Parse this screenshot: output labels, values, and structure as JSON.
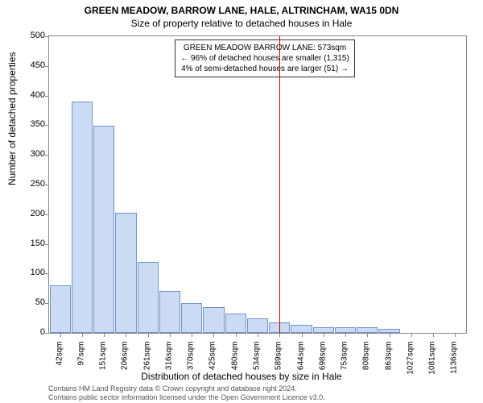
{
  "title_main": "GREEN MEADOW, BARROW LANE, HALE, ALTRINCHAM, WA15 0DN",
  "title_sub": "Size of property relative to detached houses in Hale",
  "y_label": "Number of detached properties",
  "x_label": "Distribution of detached houses by size in Hale",
  "footer_line1": "Contains HM Land Registry data © Crown copyright and database right 2024.",
  "footer_line2": "Contains public sector information licensed under the Open Government Licence v3.0.",
  "chart": {
    "type": "histogram",
    "ylim": [
      0,
      500
    ],
    "ytick_step": 50,
    "x_categories": [
      "42sqm",
      "97sqm",
      "151sqm",
      "206sqm",
      "261sqm",
      "316sqm",
      "370sqm",
      "425sqm",
      "480sqm",
      "534sqm",
      "589sqm",
      "644sqm",
      "698sqm",
      "753sqm",
      "808sqm",
      "863sqm",
      "1027sqm",
      "1081sqm",
      "1136sqm"
    ],
    "values": [
      80,
      390,
      349,
      203,
      120,
      70,
      50,
      44,
      33,
      25,
      18,
      13,
      10,
      9,
      10,
      7,
      0,
      0,
      0
    ],
    "bar_fill": "#c9daf3",
    "bar_stroke": "#6b8ec7",
    "background_color": "#ffffff",
    "border_color": "#888888",
    "ref_line_index": 10,
    "ref_line_color": "#cc0000",
    "annotation": {
      "line1": "GREEN MEADOW BARROW LANE: 573sqm",
      "line2": "← 96% of detached houses are smaller (1,315)",
      "line3": "4% of semi-detached houses are larger (51) →"
    },
    "title_fontsize": 12,
    "label_fontsize": 12,
    "tick_fontsize": 10
  }
}
